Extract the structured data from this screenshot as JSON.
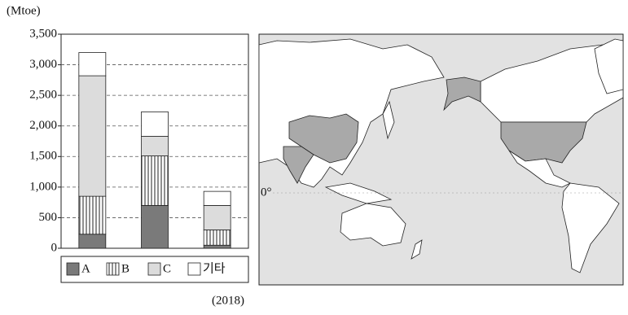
{
  "chart_data": {
    "type": "bar",
    "stacked": true,
    "unit_label": "(Mtoe)",
    "note": "(2018)",
    "categories": [
      null,
      null,
      null
    ],
    "series": [
      {
        "name": "A",
        "color": "#7a7a7a",
        "values": [
          230,
          700,
          50
        ]
      },
      {
        "name": "B",
        "color": "#ffffff",
        "pattern": "vertical-lines",
        "values": [
          620,
          810,
          250
        ]
      },
      {
        "name": "C",
        "color": "#dcdcdc",
        "values": [
          1970,
          320,
          400
        ]
      },
      {
        "name": "기타",
        "color": "#ffffff",
        "values": [
          380,
          400,
          230
        ]
      }
    ],
    "ylim": [
      0,
      3500
    ],
    "yticks": [
      0,
      500,
      {
        "value": 1000,
        "label": "1,000"
      },
      {
        "value": 1500,
        "label": "1,500"
      },
      {
        "value": 2000,
        "label": "2,000"
      },
      {
        "value": 2500,
        "label": "2,500"
      },
      {
        "value": 3000,
        "label": "3,000"
      },
      {
        "value": 3500,
        "label": "3,500"
      }
    ],
    "grid": true
  },
  "map": {
    "equator_label": "0°"
  }
}
